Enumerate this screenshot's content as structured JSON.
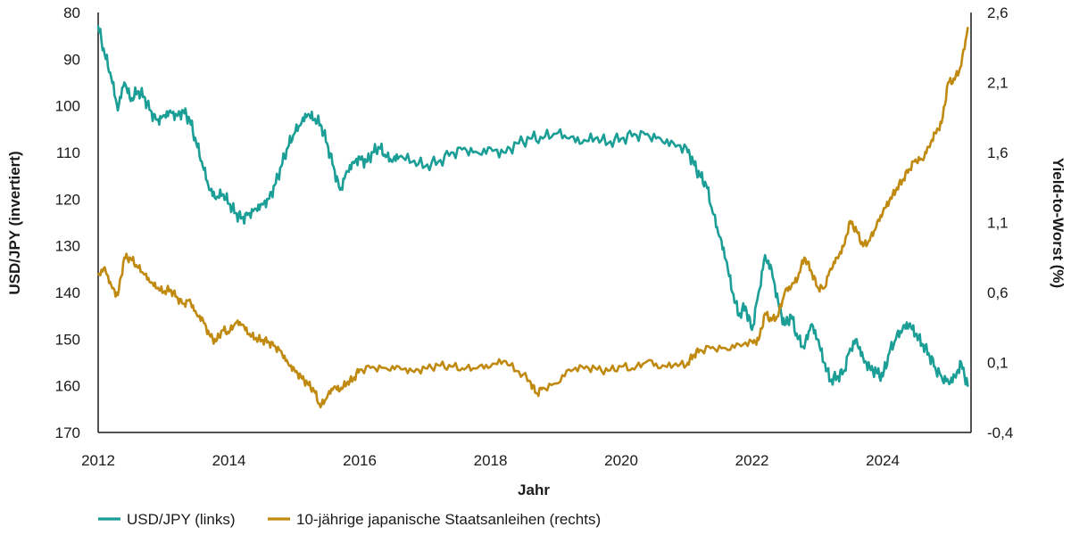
{
  "chart_data": {
    "type": "line",
    "title": "",
    "xlabel": "Jahr",
    "ylabel_left": "USD/JPY (invertiert)",
    "ylabel_right": "Yield-to-Worst (%)",
    "x_ticks": [
      "2012",
      "2014",
      "2016",
      "2018",
      "2020",
      "2022",
      "2024"
    ],
    "xlim": [
      2012,
      2025.35
    ],
    "y_left": {
      "range": [
        80,
        170
      ],
      "inverted": true,
      "ticks": [
        "80",
        "90",
        "100",
        "110",
        "120",
        "130",
        "140",
        "150",
        "160",
        "170"
      ]
    },
    "y_right": {
      "range": [
        -0.4,
        2.6
      ],
      "ticks": [
        "2,6",
        "2,1",
        "1,6",
        "1,1",
        "0,6",
        "0,1",
        "-0,4"
      ]
    },
    "grid": false,
    "legend_position": "bottom-left",
    "series": [
      {
        "name": "USD/JPY (links)",
        "axis": "left",
        "color": "#1a9e96",
        "x": [
          2012.0,
          2012.1,
          2012.2,
          2012.3,
          2012.4,
          2012.5,
          2012.6,
          2012.7,
          2012.8,
          2012.9,
          2013.0,
          2013.1,
          2013.2,
          2013.3,
          2013.4,
          2013.5,
          2013.6,
          2013.7,
          2013.8,
          2013.9,
          2014.0,
          2014.1,
          2014.2,
          2014.3,
          2014.4,
          2014.5,
          2014.6,
          2014.7,
          2014.8,
          2014.9,
          2015.0,
          2015.1,
          2015.2,
          2015.3,
          2015.4,
          2015.5,
          2015.6,
          2015.7,
          2015.8,
          2015.9,
          2016.0,
          2016.1,
          2016.2,
          2016.3,
          2016.4,
          2016.5,
          2016.6,
          2016.8,
          2017.0,
          2017.2,
          2017.4,
          2017.6,
          2017.8,
          2018.0,
          2018.2,
          2018.4,
          2018.6,
          2018.8,
          2019.0,
          2019.2,
          2019.4,
          2019.6,
          2019.8,
          2020.0,
          2020.2,
          2020.4,
          2020.6,
          2020.8,
          2021.0,
          2021.1,
          2021.2,
          2021.3,
          2021.4,
          2021.5,
          2021.6,
          2021.7,
          2021.8,
          2021.9,
          2022.0,
          2022.1,
          2022.2,
          2022.3,
          2022.4,
          2022.5,
          2022.6,
          2022.7,
          2022.8,
          2022.9,
          2023.0,
          2023.1,
          2023.2,
          2023.3,
          2023.4,
          2023.5,
          2023.6,
          2023.7,
          2023.8,
          2023.9,
          2024.0,
          2024.1,
          2024.2,
          2024.3,
          2024.4,
          2024.5,
          2024.6,
          2024.7,
          2024.8,
          2024.9,
          2025.0,
          2025.1,
          2025.2,
          2025.3
        ],
        "values": [
          83,
          89,
          94,
          101,
          95,
          99,
          97,
          98,
          101,
          103,
          102,
          101,
          102,
          101,
          103,
          108,
          113,
          118,
          120,
          119,
          121,
          123,
          124,
          123,
          122,
          121,
          120,
          117,
          113,
          109,
          106,
          104,
          102,
          103,
          104,
          108,
          113,
          118,
          114,
          112,
          111,
          112,
          110,
          109,
          111,
          112,
          111,
          112,
          113,
          112,
          110,
          109,
          110,
          109,
          110,
          108,
          107,
          107,
          106,
          107,
          108,
          107,
          108,
          107,
          106,
          106,
          107,
          108,
          109,
          112,
          115,
          117,
          123,
          128,
          133,
          140,
          145,
          143,
          148,
          140,
          132,
          135,
          142,
          147,
          145,
          150,
          152,
          147,
          150,
          155,
          159,
          158,
          157,
          152,
          150,
          154,
          156,
          157,
          158,
          153,
          150,
          148,
          147,
          149,
          151,
          153,
          156,
          158,
          159,
          158,
          155,
          160
        ]
      },
      {
        "name": "10-jährige japanische Staatsanleihen (rechts)",
        "axis": "right",
        "color": "#c08a10",
        "x": [
          2012.0,
          2012.1,
          2012.2,
          2012.3,
          2012.4,
          2012.5,
          2012.6,
          2012.7,
          2012.8,
          2012.9,
          2013.0,
          2013.1,
          2013.2,
          2013.3,
          2013.4,
          2013.5,
          2013.6,
          2013.7,
          2013.8,
          2013.9,
          2014.0,
          2014.1,
          2014.2,
          2014.3,
          2014.4,
          2014.5,
          2014.6,
          2014.7,
          2014.8,
          2014.9,
          2015.0,
          2015.1,
          2015.2,
          2015.3,
          2015.4,
          2015.5,
          2015.6,
          2015.7,
          2015.8,
          2015.9,
          2016.0,
          2016.2,
          2016.4,
          2016.6,
          2016.8,
          2017.0,
          2017.2,
          2017.4,
          2017.6,
          2017.8,
          2018.0,
          2018.2,
          2018.4,
          2018.6,
          2018.7,
          2018.8,
          2019.0,
          2019.2,
          2019.4,
          2019.6,
          2019.8,
          2020.0,
          2020.2,
          2020.4,
          2020.6,
          2020.8,
          2021.0,
          2021.1,
          2021.2,
          2021.4,
          2021.6,
          2021.8,
          2022.0,
          2022.1,
          2022.2,
          2022.3,
          2022.4,
          2022.5,
          2022.6,
          2022.7,
          2022.8,
          2022.9,
          2023.0,
          2023.1,
          2023.2,
          2023.3,
          2023.4,
          2023.5,
          2023.6,
          2023.7,
          2023.8,
          2023.9,
          2024.0,
          2024.1,
          2024.2,
          2024.3,
          2024.4,
          2024.5,
          2024.6,
          2024.7,
          2024.8,
          2024.9,
          2025.0,
          2025.1,
          2025.2,
          2025.3
        ],
        "values": [
          0.73,
          0.78,
          0.65,
          0.58,
          0.85,
          0.84,
          0.78,
          0.73,
          0.67,
          0.63,
          0.6,
          0.62,
          0.57,
          0.52,
          0.55,
          0.45,
          0.41,
          0.3,
          0.25,
          0.33,
          0.31,
          0.38,
          0.37,
          0.3,
          0.27,
          0.26,
          0.25,
          0.22,
          0.18,
          0.1,
          0.05,
          0.0,
          -0.05,
          -0.1,
          -0.22,
          -0.15,
          -0.08,
          -0.1,
          -0.05,
          -0.02,
          0.05,
          0.07,
          0.06,
          0.07,
          0.04,
          0.06,
          0.08,
          0.07,
          0.05,
          0.06,
          0.07,
          0.11,
          0.04,
          -0.03,
          -0.12,
          -0.08,
          -0.05,
          0.05,
          0.07,
          0.06,
          0.04,
          0.07,
          0.05,
          0.11,
          0.06,
          0.08,
          0.08,
          0.15,
          0.19,
          0.21,
          0.2,
          0.23,
          0.25,
          0.26,
          0.45,
          0.4,
          0.43,
          0.6,
          0.64,
          0.7,
          0.85,
          0.76,
          0.64,
          0.63,
          0.77,
          0.85,
          0.93,
          1.11,
          1.04,
          0.93,
          0.97,
          1.07,
          1.17,
          1.25,
          1.33,
          1.4,
          1.48,
          1.55,
          1.55,
          1.64,
          1.74,
          1.81,
          2.1,
          2.12,
          2.22,
          2.49
        ]
      }
    ]
  }
}
